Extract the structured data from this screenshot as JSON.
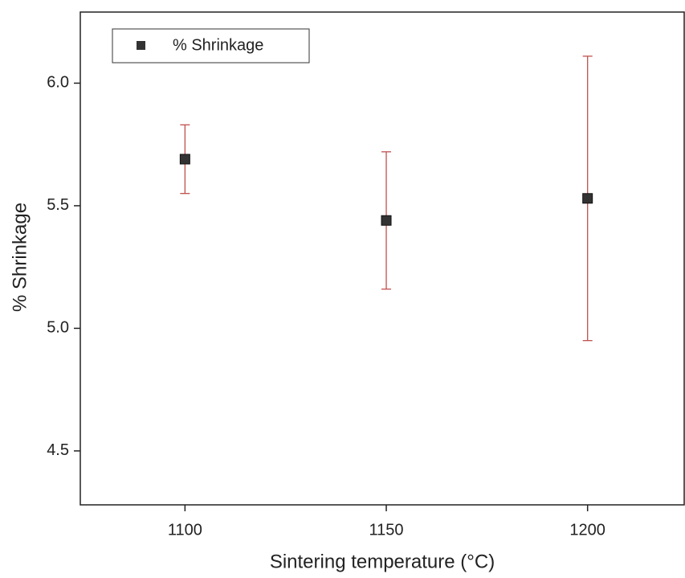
{
  "chart_data": {
    "type": "scatter",
    "x_label": "Sintering temperature (°C)",
    "y_label": "% Shrinkage",
    "x": [
      1100,
      1150,
      1200
    ],
    "series": [
      {
        "name": "% Shrinkage",
        "color": "#333333",
        "error_color": "#c0504d",
        "values": [
          5.69,
          5.44,
          5.53
        ],
        "errors": [
          0.14,
          0.28,
          0.58
        ]
      }
    ],
    "xlim": [
      1074,
      1224
    ],
    "xticks": [
      1100,
      1150,
      1200
    ],
    "ylim": [
      4.28,
      6.29
    ],
    "yticks": [
      4.5,
      {
        "value": 5.0,
        "label": "5.0"
      },
      5.5,
      {
        "value": 6.0,
        "label": "6.0"
      }
    ],
    "legend": "upper left",
    "grid": false
  }
}
